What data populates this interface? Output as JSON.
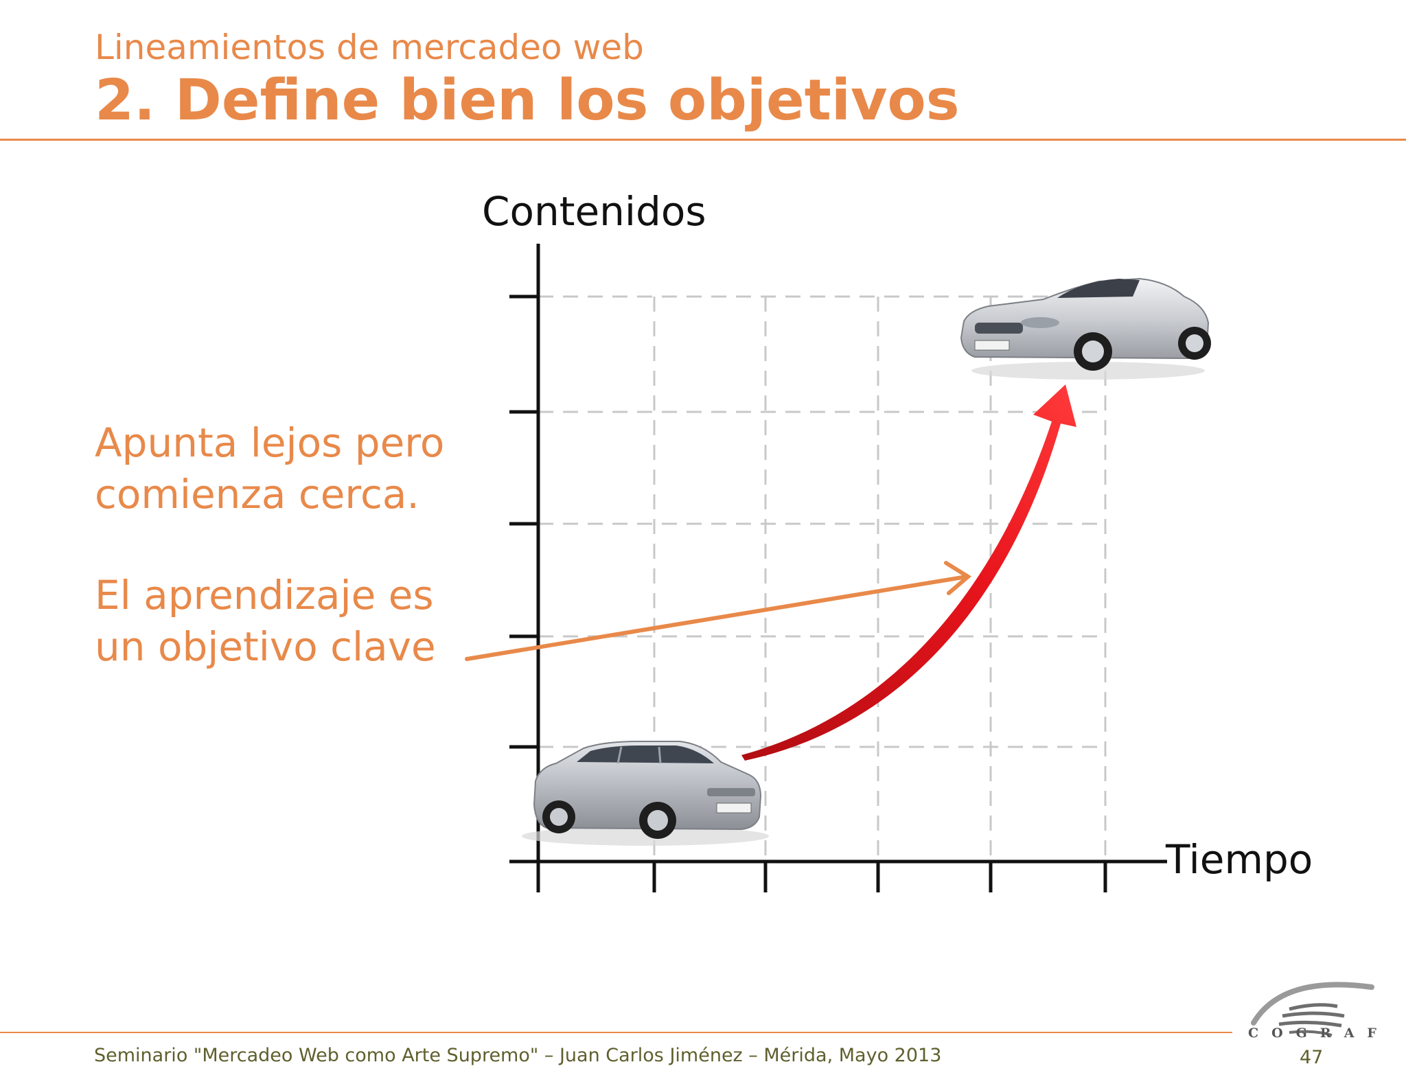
{
  "header": {
    "subtitle": "Lineamientos de mercadeo web",
    "title": "2. Define bien los objetivos"
  },
  "body": {
    "text1": [
      "Apunta lejos pero",
      "comienza cerca."
    ],
    "text2": [
      "El aprendizaje es",
      "un objetivo clave"
    ]
  },
  "diagram": {
    "y_axis_label": "Contenidos",
    "x_axis_label": "Tiempo",
    "start_item": "compact-sedan-car",
    "end_item": "sports-convertible-car",
    "curve_color": "#e8141c",
    "pointer_color": "#e8894a"
  },
  "footer": {
    "text": "Seminario \"Mercadeo Web como Arte Supremo\" – Juan Carlos Jiménez – Mérida, Mayo 2013",
    "page": "47"
  },
  "logo": {
    "name": "COGRAF",
    "icon": "cograf-logo"
  }
}
